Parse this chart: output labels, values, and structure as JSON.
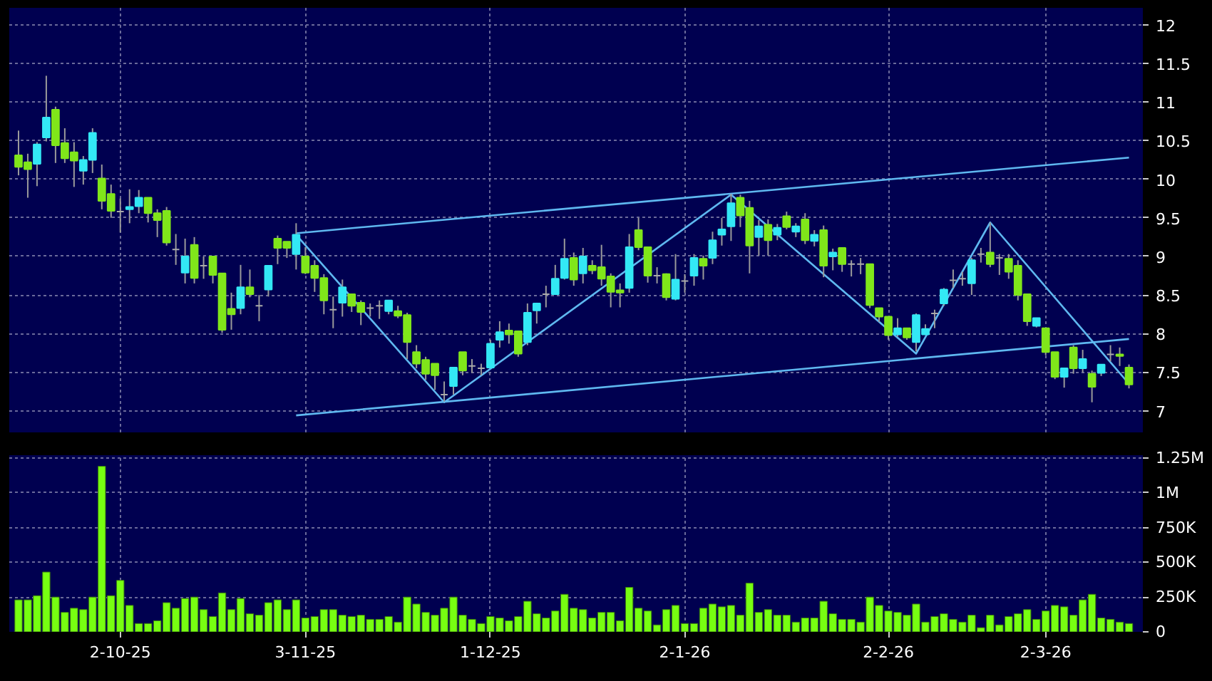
{
  "chart_data": [
    {
      "type": "candlestick",
      "categories": [
        null,
        null,
        null,
        null,
        null,
        null,
        null,
        null,
        null,
        null,
        null,
        null,
        null,
        null,
        null,
        null,
        null,
        null,
        null,
        null,
        null,
        null,
        null,
        null,
        null,
        null,
        null,
        null,
        null,
        null,
        null,
        null,
        null,
        null,
        null,
        null,
        null,
        null,
        null,
        null,
        null,
        null,
        null,
        null,
        null,
        null,
        null,
        null,
        null,
        null,
        null,
        null,
        null,
        null,
        null,
        null,
        null,
        null,
        null,
        null,
        null,
        null,
        null,
        null,
        null,
        null,
        null,
        null,
        null,
        null,
        null,
        null,
        null,
        null,
        null,
        null,
        null,
        null,
        null,
        null,
        null,
        null,
        null,
        null,
        null,
        null,
        null,
        null,
        null,
        null,
        null,
        null,
        null,
        null,
        null,
        null,
        null,
        null,
        null,
        null,
        null,
        null,
        null,
        null,
        null,
        null,
        null,
        null,
        null,
        null,
        null,
        null,
        null,
        null,
        null,
        null,
        null,
        null,
        null,
        null,
        null
      ],
      "ohlc": [
        [
          10.31,
          10.63,
          10.05,
          10.16
        ],
        [
          10.22,
          10.33,
          9.76,
          10.13
        ],
        [
          10.2,
          10.48,
          9.91,
          10.45
        ],
        [
          10.54,
          11.34,
          10.49,
          10.8
        ],
        [
          10.9,
          10.94,
          10.21,
          10.44
        ],
        [
          10.47,
          10.66,
          10.21,
          10.27
        ],
        [
          10.35,
          10.48,
          9.9,
          10.24
        ],
        [
          10.11,
          10.3,
          9.93,
          10.25
        ],
        [
          10.25,
          10.66,
          10.08,
          10.6
        ],
        [
          10.01,
          10.19,
          9.61,
          9.72
        ],
        [
          9.81,
          9.93,
          9.5,
          9.59
        ],
        [
          9.58,
          9.75,
          9.31,
          9.58
        ],
        [
          9.61,
          9.87,
          9.43,
          9.64
        ],
        [
          9.65,
          9.86,
          9.56,
          9.76
        ],
        [
          9.76,
          9.76,
          9.44,
          9.56
        ],
        [
          9.56,
          9.61,
          9.25,
          9.47
        ],
        [
          9.59,
          9.64,
          9.14,
          9.18
        ],
        [
          9.09,
          9.29,
          8.89,
          9.09
        ],
        [
          8.79,
          9.23,
          8.65,
          9.0
        ],
        [
          9.15,
          9.25,
          8.65,
          8.72
        ],
        [
          8.88,
          9.0,
          8.71,
          8.88
        ],
        [
          9.0,
          9.0,
          8.65,
          8.76
        ],
        [
          8.78,
          8.78,
          8.01,
          8.05
        ],
        [
          8.32,
          8.53,
          8.05,
          8.25
        ],
        [
          8.33,
          8.89,
          8.25,
          8.6
        ],
        [
          8.6,
          8.83,
          8.47,
          8.51
        ],
        [
          8.36,
          8.5,
          8.16,
          8.36
        ],
        [
          8.57,
          8.88,
          8.48,
          8.88
        ],
        [
          9.23,
          9.27,
          8.9,
          9.11
        ],
        [
          9.19,
          9.19,
          8.98,
          9.11
        ],
        [
          9.03,
          9.43,
          8.83,
          9.28
        ],
        [
          9.0,
          9.12,
          8.77,
          8.79
        ],
        [
          8.88,
          8.95,
          8.54,
          8.72
        ],
        [
          8.72,
          8.77,
          8.25,
          8.43
        ],
        [
          8.31,
          8.48,
          8.07,
          8.31
        ],
        [
          8.4,
          8.7,
          8.22,
          8.6
        ],
        [
          8.51,
          8.51,
          8.28,
          8.36
        ],
        [
          8.4,
          8.43,
          8.11,
          8.28
        ],
        [
          8.33,
          8.39,
          8.22,
          8.33
        ],
        [
          8.36,
          8.43,
          8.19,
          8.36
        ],
        [
          8.29,
          8.43,
          8.25,
          8.43
        ],
        [
          8.29,
          8.36,
          8.2,
          8.23
        ],
        [
          8.24,
          8.27,
          7.67,
          7.89
        ],
        [
          7.76,
          7.85,
          7.55,
          7.61
        ],
        [
          7.66,
          7.7,
          7.4,
          7.48
        ],
        [
          7.61,
          7.61,
          7.27,
          7.46
        ],
        [
          7.21,
          7.38,
          7.12,
          7.21
        ],
        [
          7.32,
          7.56,
          7.21,
          7.56
        ],
        [
          7.76,
          7.76,
          7.46,
          7.52
        ],
        [
          7.58,
          7.67,
          7.49,
          7.58
        ],
        [
          7.55,
          7.61,
          7.46,
          7.55
        ],
        [
          7.56,
          7.92,
          7.55,
          7.87
        ],
        [
          7.92,
          8.16,
          7.82,
          8.02
        ],
        [
          8.04,
          8.13,
          7.87,
          7.99
        ],
        [
          8.03,
          8.04,
          7.7,
          7.74
        ],
        [
          7.89,
          8.39,
          7.85,
          8.27
        ],
        [
          8.3,
          8.4,
          8.13,
          8.39
        ],
        [
          8.51,
          8.62,
          8.34,
          8.51
        ],
        [
          8.51,
          8.89,
          8.5,
          8.71
        ],
        [
          8.72,
          9.23,
          8.7,
          8.97
        ],
        [
          8.98,
          9.05,
          8.62,
          8.7
        ],
        [
          8.78,
          9.11,
          8.65,
          9.0
        ],
        [
          8.88,
          8.95,
          8.77,
          8.82
        ],
        [
          8.86,
          9.15,
          8.62,
          8.71
        ],
        [
          8.74,
          8.78,
          8.34,
          8.54
        ],
        [
          8.56,
          8.65,
          8.34,
          8.53
        ],
        [
          8.59,
          9.29,
          8.53,
          9.12
        ],
        [
          9.34,
          9.5,
          9.08,
          9.12
        ],
        [
          9.12,
          9.12,
          8.66,
          8.75
        ],
        [
          8.75,
          8.86,
          8.65,
          8.75
        ],
        [
          8.77,
          8.78,
          8.43,
          8.47
        ],
        [
          8.45,
          9.03,
          8.43,
          8.7
        ],
        [
          8.68,
          8.77,
          8.53,
          8.68
        ],
        [
          8.75,
          9.03,
          8.62,
          8.98
        ],
        [
          8.97,
          9.01,
          8.7,
          8.88
        ],
        [
          8.98,
          9.32,
          8.9,
          9.21
        ],
        [
          9.28,
          9.5,
          9.14,
          9.35
        ],
        [
          9.39,
          9.81,
          9.2,
          9.69
        ],
        [
          9.76,
          9.8,
          9.38,
          9.53
        ],
        [
          9.63,
          9.72,
          8.78,
          9.14
        ],
        [
          9.25,
          9.47,
          9.01,
          9.39
        ],
        [
          9.41,
          9.48,
          9.01,
          9.21
        ],
        [
          9.28,
          9.42,
          9.21,
          9.37
        ],
        [
          9.52,
          9.58,
          9.35,
          9.38
        ],
        [
          9.32,
          9.43,
          9.25,
          9.39
        ],
        [
          9.48,
          9.56,
          9.16,
          9.21
        ],
        [
          9.2,
          9.34,
          9.13,
          9.28
        ],
        [
          9.34,
          9.4,
          8.73,
          8.88
        ],
        [
          9.0,
          9.1,
          8.82,
          9.05
        ],
        [
          9.11,
          9.11,
          8.8,
          8.9
        ],
        [
          8.9,
          8.95,
          8.74,
          8.9
        ],
        [
          8.9,
          8.98,
          8.77,
          8.9
        ],
        [
          8.9,
          8.9,
          8.33,
          8.37
        ],
        [
          8.33,
          8.33,
          8.15,
          8.22
        ],
        [
          8.22,
          8.22,
          7.92,
          7.98
        ],
        [
          7.99,
          8.2,
          7.96,
          8.07
        ],
        [
          8.07,
          8.07,
          7.92,
          7.95
        ],
        [
          7.89,
          8.26,
          7.77,
          8.24
        ],
        [
          7.99,
          8.12,
          7.98,
          8.06
        ],
        [
          8.26,
          8.31,
          8.07,
          8.26
        ],
        [
          8.39,
          8.59,
          8.36,
          8.57
        ],
        [
          8.69,
          8.83,
          8.59,
          8.69
        ],
        [
          8.71,
          8.8,
          8.62,
          8.71
        ],
        [
          8.65,
          8.98,
          8.5,
          8.95
        ],
        [
          9.03,
          9.11,
          8.92,
          9.03
        ],
        [
          9.05,
          9.44,
          8.86,
          8.9
        ],
        [
          8.98,
          9.03,
          8.76,
          8.98
        ],
        [
          8.97,
          9.03,
          8.71,
          8.8
        ],
        [
          8.88,
          8.95,
          8.43,
          8.5
        ],
        [
          8.51,
          8.51,
          8.1,
          8.16
        ],
        [
          8.1,
          8.2,
          8.08,
          8.2
        ],
        [
          8.07,
          8.07,
          7.72,
          7.76
        ],
        [
          7.76,
          7.76,
          7.41,
          7.44
        ],
        [
          7.44,
          7.55,
          7.3,
          7.55
        ],
        [
          7.82,
          7.85,
          7.48,
          7.55
        ],
        [
          7.55,
          7.79,
          7.5,
          7.67
        ],
        [
          7.48,
          7.52,
          7.11,
          7.31
        ],
        [
          7.49,
          7.6,
          7.45,
          7.6
        ],
        [
          7.73,
          7.85,
          7.64,
          7.73
        ],
        [
          7.73,
          7.82,
          7.58,
          7.71
        ],
        [
          7.56,
          7.6,
          7.29,
          7.34
        ]
      ],
      "colors": [
        "#80e61a",
        "#80e61a",
        "#33e8f5",
        "#33e8f5",
        "#80e61a",
        "#80e61a",
        "#80e61a",
        "#33e8f5",
        "#33e8f5",
        "#80e61a",
        "#80e61a",
        "#aaaaaa",
        "#33e8f5",
        "#33e8f5",
        "#80e61a",
        "#80e61a",
        "#80e61a",
        "#aaaaaa",
        "#33e8f5",
        "#80e61a",
        "#aaaaaa",
        "#80e61a",
        "#80e61a",
        "#80e61a",
        "#33e8f5",
        "#80e61a",
        "#aaaaaa",
        "#33e8f5",
        "#80e61a",
        "#80e61a",
        "#33e8f5",
        "#80e61a",
        "#80e61a",
        "#80e61a",
        "#aaaaaa",
        "#33e8f5",
        "#80e61a",
        "#80e61a",
        "#aaaaaa",
        "#aaaaaa",
        "#33e8f5",
        "#80e61a",
        "#80e61a",
        "#80e61a",
        "#80e61a",
        "#80e61a",
        "#aaaaaa",
        "#33e8f5",
        "#80e61a",
        "#aaaaaa",
        "#aaaaaa",
        "#33e8f5",
        "#33e8f5",
        "#80e61a",
        "#80e61a",
        "#33e8f5",
        "#33e8f5",
        "#aaaaaa",
        "#33e8f5",
        "#33e8f5",
        "#80e61a",
        "#33e8f5",
        "#80e61a",
        "#80e61a",
        "#80e61a",
        "#80e61a",
        "#33e8f5",
        "#80e61a",
        "#80e61a",
        "#aaaaaa",
        "#80e61a",
        "#33e8f5",
        "#aaaaaa",
        "#33e8f5",
        "#80e61a",
        "#33e8f5",
        "#33e8f5",
        "#33e8f5",
        "#80e61a",
        "#80e61a",
        "#33e8f5",
        "#80e61a",
        "#33e8f5",
        "#80e61a",
        "#33e8f5",
        "#80e61a",
        "#33e8f5",
        "#80e61a",
        "#33e8f5",
        "#80e61a",
        "#aaaaaa",
        "#aaaaaa",
        "#80e61a",
        "#80e61a",
        "#80e61a",
        "#33e8f5",
        "#80e61a",
        "#33e8f5",
        "#33e8f5",
        "#aaaaaa",
        "#33e8f5",
        "#aaaaaa",
        "#aaaaaa",
        "#33e8f5",
        "#aaaaaa",
        "#80e61a",
        "#aaaaaa",
        "#80e61a",
        "#80e61a",
        "#80e61a",
        "#33e8f5",
        "#80e61a",
        "#80e61a",
        "#33e8f5",
        "#80e61a",
        "#33e8f5",
        "#80e61a",
        "#33e8f5",
        "#aaaaaa",
        "#80e61a",
        "#80e61a"
      ],
      "series": [
        {
          "type": "line",
          "color": "#5fb8f0",
          "values": [
            null,
            null,
            null,
            null,
            null,
            null,
            null,
            null,
            null,
            null,
            null,
            null,
            null,
            null,
            null,
            null,
            null,
            null,
            null,
            null,
            null,
            null,
            null,
            null,
            null,
            null,
            null,
            null,
            null,
            null,
            9.3,
            null,
            null,
            null,
            null,
            null,
            null,
            null,
            null,
            null,
            null,
            null,
            null,
            null,
            null,
            null,
            null,
            null,
            null,
            null,
            null,
            null,
            null,
            null,
            null,
            null,
            null,
            null,
            null,
            null,
            null,
            null,
            null,
            null,
            null,
            null,
            null,
            null,
            null,
            null,
            null,
            null,
            null,
            null,
            null,
            null,
            null,
            null,
            null,
            null,
            null,
            null,
            null,
            null,
            null,
            null,
            null,
            null,
            null,
            null,
            null,
            null,
            null,
            null,
            null,
            null,
            null,
            null,
            null,
            null,
            null,
            null,
            null,
            null,
            null,
            null,
            null,
            null,
            null,
            null,
            null,
            null,
            null,
            null,
            null,
            null,
            null,
            null,
            null,
            null,
            10.28
          ]
        },
        {
          "type": "line",
          "color": "#5fb8f0",
          "values": [
            null,
            null,
            null,
            null,
            null,
            null,
            null,
            null,
            null,
            null,
            null,
            null,
            null,
            null,
            null,
            null,
            null,
            null,
            null,
            null,
            null,
            null,
            null,
            null,
            null,
            null,
            null,
            null,
            null,
            null,
            6.94,
            null,
            null,
            null,
            null,
            null,
            null,
            null,
            null,
            null,
            null,
            null,
            null,
            null,
            null,
            null,
            null,
            null,
            null,
            null,
            null,
            null,
            null,
            null,
            null,
            null,
            null,
            null,
            null,
            null,
            null,
            null,
            null,
            null,
            null,
            null,
            null,
            null,
            null,
            null,
            null,
            null,
            null,
            null,
            null,
            null,
            null,
            null,
            null,
            null,
            null,
            null,
            null,
            null,
            null,
            null,
            null,
            null,
            null,
            null,
            null,
            null,
            null,
            null,
            null,
            null,
            null,
            null,
            null,
            null,
            null,
            null,
            null,
            null,
            null,
            null,
            null,
            null,
            null,
            null,
            null,
            null,
            null,
            null,
            null,
            null,
            null,
            null,
            null,
            null,
            7.93
          ]
        },
        {
          "type": "line",
          "color": "#5fb8f0",
          "values": [
            null,
            null,
            null,
            null,
            null,
            null,
            null,
            null,
            null,
            null,
            null,
            null,
            null,
            null,
            null,
            null,
            null,
            null,
            null,
            null,
            null,
            null,
            null,
            null,
            null,
            null,
            null,
            null,
            null,
            null,
            9.28,
            null,
            null,
            null,
            null,
            null,
            null,
            null,
            null,
            null,
            null,
            null,
            null,
            null,
            null,
            null,
            7.11,
            null,
            null,
            null,
            null,
            null,
            null,
            null,
            null,
            null,
            null,
            null,
            null,
            null,
            null,
            null,
            null,
            null,
            null,
            null,
            null,
            null,
            null,
            null,
            null,
            null,
            null,
            null,
            null,
            null,
            null,
            9.8,
            null,
            null,
            null,
            null,
            null,
            null,
            null,
            null,
            null,
            null,
            null,
            null,
            null,
            null,
            null,
            null,
            null,
            null,
            null,
            7.74,
            null,
            null,
            null,
            null,
            null,
            null,
            null,
            9.44,
            null,
            null,
            null,
            null,
            null,
            null,
            null,
            null,
            null,
            null,
            null,
            null,
            null,
            null,
            7.35
          ]
        }
      ],
      "ylim": [
        6.72,
        12.22
      ],
      "yticks": [
        7,
        7.5,
        8,
        8.5,
        9,
        9.5,
        10,
        10.5,
        11,
        11.5,
        12
      ],
      "grid": true,
      "tick_labels": "y"
    },
    {
      "type": "bar",
      "categories": [
        null,
        null,
        null,
        null,
        null,
        null,
        null,
        null,
        null,
        null,
        null,
        "2-10-25",
        null,
        null,
        null,
        null,
        null,
        null,
        null,
        null,
        null,
        null,
        null,
        null,
        null,
        null,
        null,
        null,
        null,
        null,
        null,
        "3-11-25",
        null,
        null,
        null,
        null,
        null,
        null,
        null,
        null,
        null,
        null,
        null,
        null,
        null,
        null,
        null,
        null,
        null,
        null,
        null,
        "1-12-25",
        null,
        null,
        null,
        null,
        null,
        null,
        null,
        null,
        null,
        null,
        null,
        null,
        null,
        null,
        null,
        null,
        null,
        null,
        null,
        null,
        "2-1-26",
        null,
        null,
        null,
        null,
        null,
        null,
        null,
        null,
        null,
        null,
        null,
        null,
        null,
        null,
        null,
        null,
        null,
        null,
        null,
        null,
        null,
        "2-2-26",
        null,
        null,
        null,
        null,
        null,
        null,
        null,
        null,
        null,
        null,
        null,
        null,
        null,
        null,
        null,
        null,
        "2-3-26",
        null,
        null,
        null,
        null,
        null,
        null,
        null,
        null,
        null
      ],
      "values": [
        230000,
        230000,
        260000,
        430000,
        250000,
        140000,
        170000,
        160000,
        250000,
        1190000,
        260000,
        370000,
        190000,
        60000,
        60000,
        80000,
        210000,
        170000,
        240000,
        250000,
        160000,
        110000,
        280000,
        160000,
        240000,
        130000,
        120000,
        210000,
        230000,
        160000,
        230000,
        100000,
        110000,
        160000,
        160000,
        120000,
        110000,
        120000,
        90000,
        90000,
        110000,
        70000,
        250000,
        200000,
        140000,
        120000,
        170000,
        250000,
        120000,
        90000,
        60000,
        110000,
        100000,
        80000,
        110000,
        220000,
        130000,
        100000,
        150000,
        270000,
        170000,
        160000,
        100000,
        140000,
        140000,
        80000,
        320000,
        170000,
        150000,
        50000,
        160000,
        190000,
        60000,
        60000,
        170000,
        200000,
        180000,
        190000,
        120000,
        350000,
        140000,
        160000,
        120000,
        120000,
        70000,
        100000,
        100000,
        220000,
        130000,
        90000,
        90000,
        70000,
        250000,
        190000,
        150000,
        140000,
        120000,
        200000,
        70000,
        110000,
        130000,
        90000,
        70000,
        120000,
        30000,
        120000,
        50000,
        110000,
        130000,
        160000,
        90000,
        150000,
        190000,
        180000,
        120000,
        230000,
        270000,
        100000,
        90000,
        70000,
        60000
      ],
      "color": "#77ff11",
      "ylim": [
        0,
        1270000
      ],
      "yticks": [
        0,
        {
          "value": 250000,
          "label": "250K"
        },
        {
          "value": 500000,
          "label": "500K"
        },
        {
          "value": 750000,
          "label": "750K"
        },
        {
          "value": 1000000,
          "label": "1M"
        },
        {
          "value": 1250000,
          "label": "1.25M"
        }
      ],
      "grid": true
    }
  ]
}
